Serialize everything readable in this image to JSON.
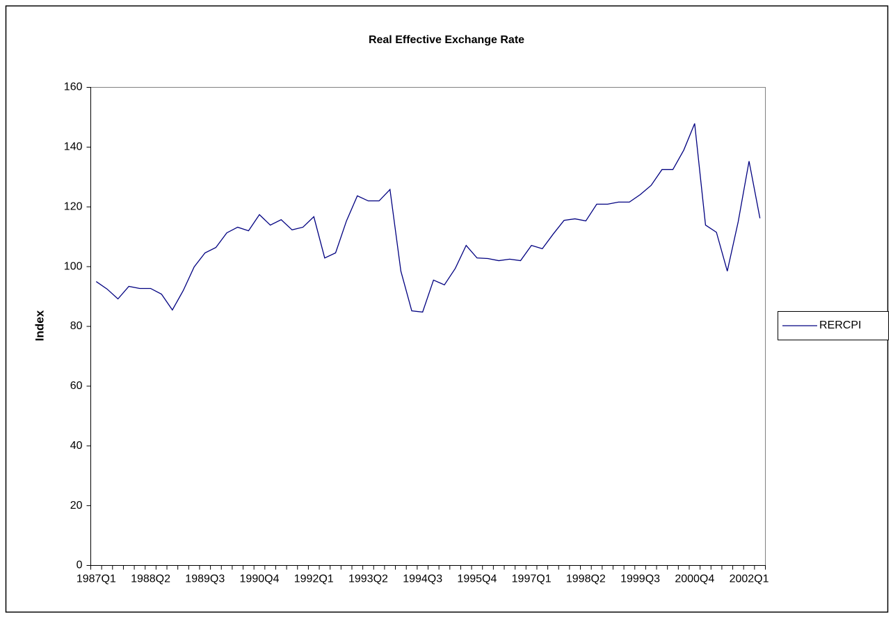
{
  "chart_data": {
    "type": "line",
    "title": "Real Effective Exchange Rate",
    "y_label": "Index",
    "categories": [
      "1987Q1",
      null,
      null,
      null,
      null,
      "1988Q2",
      null,
      null,
      null,
      null,
      "1989Q3",
      null,
      null,
      null,
      null,
      "1990Q4",
      null,
      null,
      null,
      null,
      "1992Q1",
      null,
      null,
      null,
      null,
      "1993Q2",
      null,
      null,
      null,
      null,
      "1994Q3",
      null,
      null,
      null,
      null,
      "1995Q4",
      null,
      null,
      null,
      null,
      "1997Q1",
      null,
      null,
      null,
      null,
      "1998Q2",
      null,
      null,
      null,
      null,
      "1999Q3",
      null,
      null,
      null,
      null,
      "2000Q4",
      null,
      null,
      null,
      null,
      "2002Q1",
      null
    ],
    "series": [
      {
        "name": "RERCPI",
        "color": "#000080",
        "values": [
          95,
          92.5,
          89.2,
          93.4,
          92.7,
          92.7,
          90.8,
          85.5,
          92,
          99.9,
          104.6,
          106.4,
          111.3,
          113.2,
          112,
          117.4,
          113.9,
          115.7,
          112.3,
          113.2,
          116.7,
          102.9,
          104.6,
          115.3,
          123.7,
          122,
          122,
          125.8,
          98.5,
          85.2,
          84.8,
          95.5,
          93.9,
          99.4,
          107.1,
          102.9,
          102.7,
          102,
          102.5,
          102,
          107.1,
          106,
          110.9,
          115.5,
          116,
          115.3,
          120.9,
          120.9,
          121.6,
          121.6,
          124.1,
          127.2,
          132.5,
          132.5,
          139,
          147.9,
          113.9,
          111.5,
          98.5,
          115,
          135.3,
          116.2
        ]
      }
    ],
    "ylim": [
      0,
      160
    ],
    "yticks": [
      0,
      20,
      40,
      60,
      80,
      100,
      120,
      140,
      160
    ],
    "grid": false,
    "legend": "right"
  }
}
